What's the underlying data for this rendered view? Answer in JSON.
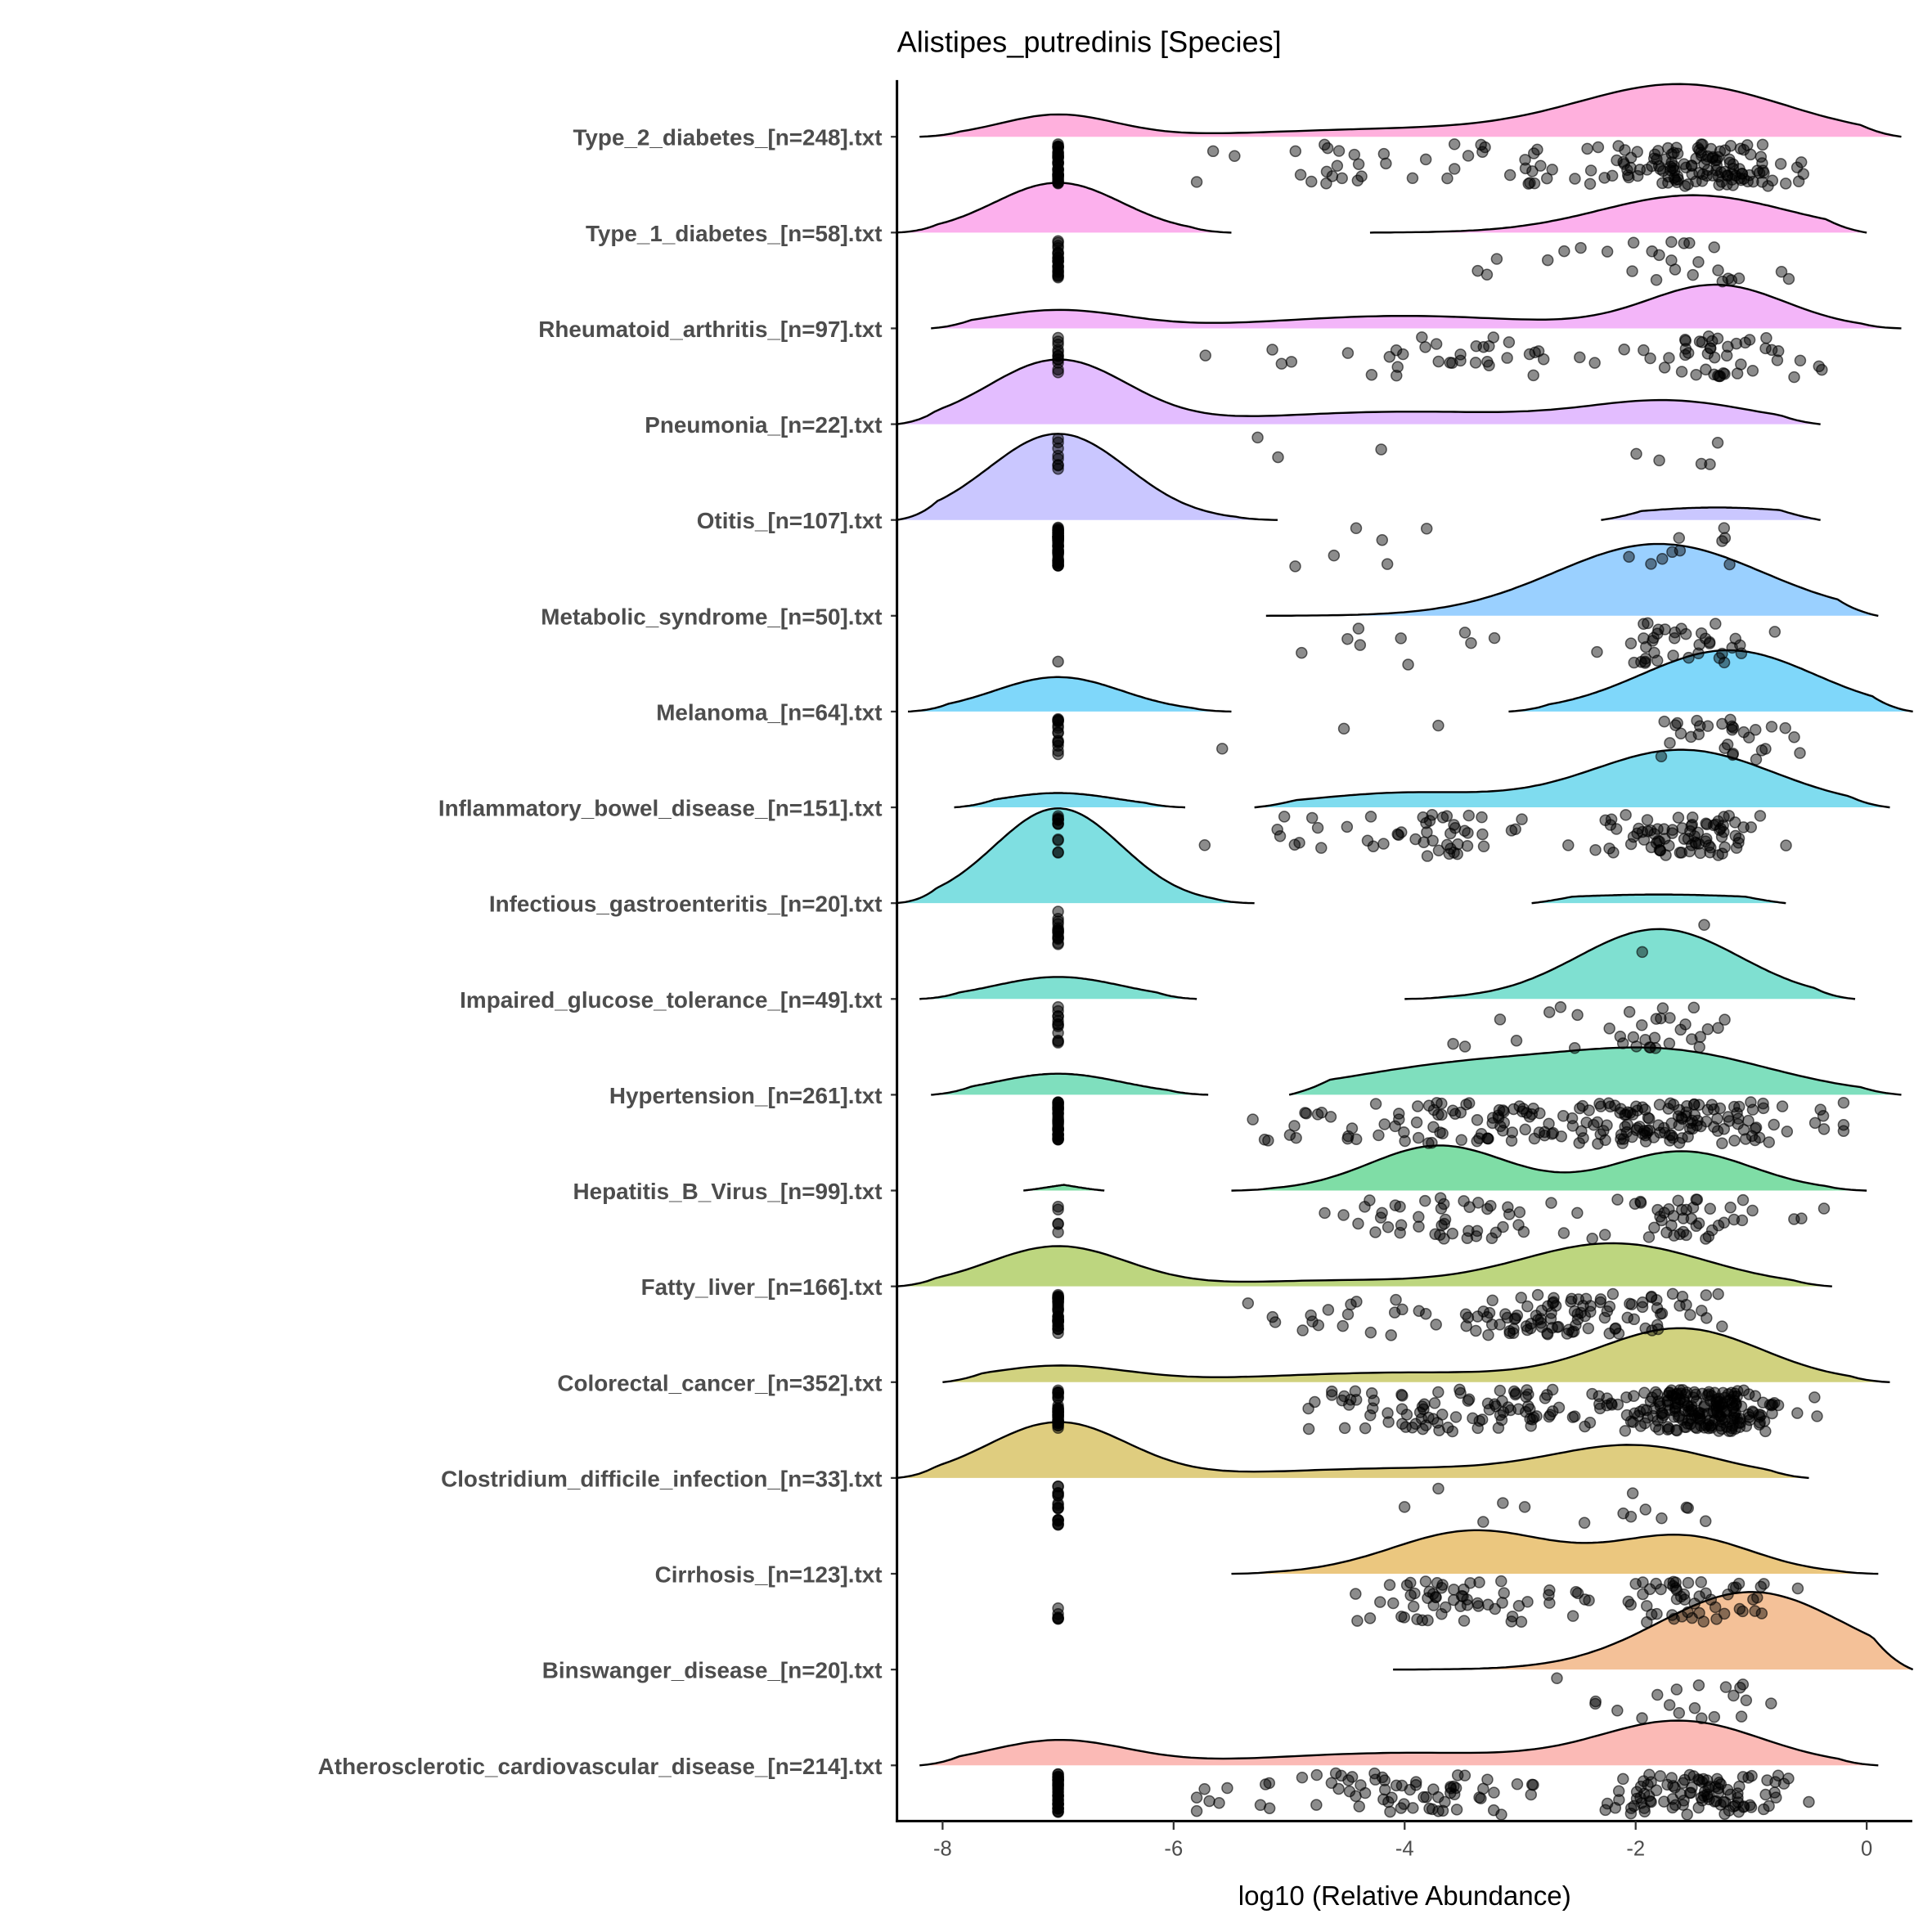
{
  "chart_data": {
    "type": "ridgeline-raincloud",
    "title": "Alistipes_putredinis [Species]",
    "xlabel": "log10 (Relative Abundance)",
    "ylabel": "",
    "xlim": [
      -8.4,
      0.4
    ],
    "xticks": [
      -8,
      -6,
      -4,
      -2,
      0
    ],
    "xtick_labels": [
      "-8",
      "-6",
      "-4",
      "-2",
      "0"
    ],
    "zero_value": -7,
    "grid": false,
    "legend": "none",
    "categories": [
      {
        "label": "Type_2_diabetes_[n=248].txt",
        "color": "#FF62BC",
        "segments": [
          {
            "range": [
              -8.2,
              0.3
            ],
            "components": [
              [
                -7,
                0.5,
                0.23
              ],
              [
                -4,
                1.2,
                0.08
              ],
              [
                -1.6,
                0.9,
                0.54
              ]
            ]
          }
        ],
        "zeros": 40,
        "points": [
          [
            -4.5,
            0.6,
            25
          ],
          [
            -2.6,
            0.6,
            35
          ],
          [
            -1.4,
            0.4,
            110
          ]
        ]
      },
      {
        "label": "Type_1_diabetes_[n=58].txt",
        "color": "#FA62DB",
        "segments": [
          {
            "range": [
              -8.4,
              -5.5
            ],
            "components": [
              [
                -7,
                0.55,
                0.52
              ]
            ]
          },
          {
            "range": [
              -4.3,
              0
            ],
            "components": [
              [
                -1.5,
                0.8,
                0.39
              ]
            ]
          }
        ],
        "zeros": 25,
        "points": [
          [
            -3.3,
            0.4,
            5
          ],
          [
            -1.6,
            0.4,
            22
          ]
        ]
      },
      {
        "label": "Rheumatoid_arthritis_[n=97].txt",
        "color": "#E76BF3",
        "segments": [
          {
            "range": [
              -8.1,
              0.3
            ],
            "components": [
              [
                -7,
                0.6,
                0.19
              ],
              [
                -4,
                1.1,
                0.13
              ],
              [
                -1.3,
                0.6,
                0.45
              ]
            ]
          }
        ],
        "zeros": 12,
        "points": [
          [
            -4.6,
            0.5,
            10
          ],
          [
            -3.3,
            0.5,
            25
          ],
          [
            -1.3,
            0.35,
            45
          ]
        ]
      },
      {
        "label": "Pneumonia_[n=22].txt",
        "color": "#C77CFF",
        "segments": [
          {
            "range": [
              -8.4,
              -0.4
            ],
            "components": [
              [
                -7,
                0.6,
                0.67
              ],
              [
                -4,
                1.2,
                0.13
              ],
              [
                -1.7,
                0.7,
                0.23
              ]
            ]
          }
        ],
        "zeros": 8,
        "points": [
          [
            -4.5,
            0.7,
            3
          ],
          [
            -1.7,
            0.4,
            5
          ]
        ]
      },
      {
        "label": "Otitis_[n=107].txt",
        "color": "#9590FF",
        "segments": [
          {
            "range": [
              -8.4,
              -5.1
            ],
            "components": [
              [
                -7,
                0.6,
                0.9
              ]
            ]
          },
          {
            "range": [
              -2.3,
              -0.4
            ],
            "components": [
              [
                -1.3,
                0.8,
                0.13
              ]
            ]
          }
        ],
        "zeros": 60,
        "points": [
          [
            -4.3,
            0.6,
            6
          ],
          [
            -1.3,
            0.3,
            10
          ]
        ]
      },
      {
        "label": "Metabolic_syndrome_[n=50].txt",
        "color": "#35A2FF",
        "segments": [
          {
            "range": [
              -5.2,
              0.1
            ],
            "components": [
              [
                -1.8,
                0.9,
                0.75
              ]
            ]
          }
        ],
        "zeros": 1,
        "points": [
          [
            -3.8,
            0.6,
            10
          ],
          [
            -1.6,
            0.35,
            38
          ]
        ]
      },
      {
        "label": "Melanoma_[n=64].txt",
        "color": "#00B0F6",
        "segments": [
          {
            "range": [
              -8.3,
              -5.5
            ],
            "components": [
              [
                -7,
                0.55,
                0.36
              ]
            ]
          },
          {
            "range": [
              -3.1,
              0.4
            ],
            "components": [
              [
                -1.2,
                0.75,
                0.64
              ]
            ]
          }
        ],
        "zeros": 15,
        "points": [
          [
            -4.5,
            0.6,
            3
          ],
          [
            -1.2,
            0.3,
            30
          ]
        ]
      },
      {
        "label": "Inflammatory_bowel_disease_[n=151].txt",
        "color": "#00BAE0",
        "segments": [
          {
            "range": [
              -7.9,
              -5.9
            ],
            "components": [
              [
                -7,
                0.5,
                0.15
              ]
            ]
          },
          {
            "range": [
              -5.3,
              0.2
            ],
            "components": [
              [
                -4,
                0.8,
                0.15
              ],
              [
                -1.6,
                0.8,
                0.6
              ]
            ]
          }
        ],
        "zeros": 12,
        "points": [
          [
            -5.0,
            0.3,
            8
          ],
          [
            -3.6,
            0.4,
            40
          ],
          [
            -1.6,
            0.4,
            80
          ]
        ]
      },
      {
        "label": "Infectious_gastroenteritis_[n=20].txt",
        "color": "#00BFC4",
        "segments": [
          {
            "range": [
              -8.4,
              -5.3
            ],
            "components": [
              [
                -7,
                0.55,
                0.99
              ]
            ]
          },
          {
            "range": [
              -2.9,
              -0.7
            ],
            "components": [
              [
                -1.8,
                1.0,
                0.09
              ]
            ]
          }
        ],
        "zeros": 16,
        "points": [
          [
            -1.8,
            0.6,
            2
          ]
        ]
      },
      {
        "label": "Impaired_glucose_tolerance_[n=49].txt",
        "color": "#00C1A3",
        "segments": [
          {
            "range": [
              -8.2,
              -5.8
            ],
            "components": [
              [
                -7,
                0.55,
                0.23
              ]
            ]
          },
          {
            "range": [
              -4,
              -0.1
            ],
            "components": [
              [
                -1.8,
                0.7,
                0.73
              ]
            ]
          }
        ],
        "zeros": 12,
        "points": [
          [
            -3.1,
            0.3,
            6
          ],
          [
            -1.8,
            0.35,
            28
          ]
        ]
      },
      {
        "label": "Hypertension_[n=261].txt",
        "color": "#00BF7D",
        "segments": [
          {
            "range": [
              -8.1,
              -5.7
            ],
            "components": [
              [
                -7,
                0.55,
                0.22
              ]
            ]
          },
          {
            "range": [
              -5.0,
              0.3
            ],
            "components": [
              [
                -3.5,
                1.0,
                0.3
              ],
              [
                -1.7,
                0.9,
                0.42
              ]
            ]
          }
        ],
        "zeros": 40,
        "points": [
          [
            -4.6,
            0.5,
            20
          ],
          [
            -3.2,
            0.5,
            60
          ],
          [
            -1.7,
            0.6,
            130
          ]
        ]
      },
      {
        "label": "Hepatitis_B_Virus_[n=99].txt",
        "color": "#00BB4E",
        "segments": [
          {
            "range": [
              -7.3,
              -6.6
            ],
            "components": [
              [
                -7,
                0.4,
                0.06
              ]
            ]
          },
          {
            "range": [
              -5.5,
              0
            ],
            "components": [
              [
                -3.7,
                0.6,
                0.47
              ],
              [
                -1.6,
                0.6,
                0.41
              ]
            ]
          }
        ],
        "zeros": 5,
        "points": [
          [
            -3.7,
            0.45,
            45
          ],
          [
            -1.6,
            0.4,
            45
          ]
        ]
      },
      {
        "label": "Fatty_liver_[n=166].txt",
        "color": "#7CAE00",
        "segments": [
          {
            "range": [
              -8.4,
              -0.3
            ],
            "components": [
              [
                -7,
                0.6,
                0.42
              ],
              [
                -4.6,
                0.8,
                0.06
              ],
              [
                -2.2,
                0.8,
                0.45
              ]
            ]
          }
        ],
        "zeros": 40,
        "points": [
          [
            -4.5,
            0.5,
            20
          ],
          [
            -2.5,
            0.6,
            100
          ]
        ]
      },
      {
        "label": "Colorectal_cancer_[n=352].txt",
        "color": "#A3A500",
        "segments": [
          {
            "range": [
              -8,
              0.2
            ],
            "components": [
              [
                -7,
                0.6,
                0.17
              ],
              [
                -4,
                1.2,
                0.1
              ],
              [
                -1.6,
                0.7,
                0.55
              ]
            ]
          }
        ],
        "zeros": 40,
        "points": [
          [
            -4.3,
            0.7,
            40
          ],
          [
            -2.8,
            0.5,
            60
          ],
          [
            -1.4,
            0.35,
            200
          ]
        ]
      },
      {
        "label": "Clostridium_difficile_infection_[n=33].txt",
        "color": "#C09B00",
        "segments": [
          {
            "range": [
              -8.4,
              -0.5
            ],
            "components": [
              [
                -7,
                0.6,
                0.58
              ],
              [
                -4,
                1.2,
                0.1
              ],
              [
                -2,
                0.7,
                0.32
              ]
            ]
          }
        ],
        "zeros": 18,
        "points": [
          [
            -3.5,
            0.4,
            5
          ],
          [
            -1.9,
            0.3,
            9
          ]
        ]
      },
      {
        "label": "Cirrhosis_[n=123].txt",
        "color": "#D89000",
        "segments": [
          {
            "range": [
              -5.5,
              0.1
            ],
            "components": [
              [
                -3.4,
                0.7,
                0.45
              ],
              [
                -1.6,
                0.6,
                0.39
              ]
            ]
          }
        ],
        "zeros": 6,
        "points": [
          [
            -3.6,
            0.45,
            55
          ],
          [
            -1.5,
            0.4,
            55
          ]
        ]
      },
      {
        "label": "Binswanger_disease_[n=20].txt",
        "color": "#EA8331",
        "segments": [
          {
            "range": [
              -4.1,
              0.4
            ],
            "components": [
              [
                -1.0,
                0.8,
                0.81
              ]
            ]
          }
        ],
        "zeros": 0,
        "points": [
          [
            -1.5,
            0.6,
            20
          ]
        ]
      },
      {
        "label": "Atherosclerotic_cardiovascular_disease_[n=214].txt",
        "color": "#F8766D",
        "segments": [
          {
            "range": [
              -8.2,
              0.1
            ],
            "components": [
              [
                -7,
                0.6,
                0.26
              ],
              [
                -4,
                1.2,
                0.13
              ],
              [
                -1.6,
                0.7,
                0.45
              ]
            ]
          }
        ],
        "zeros": 40,
        "points": [
          [
            -5.3,
            0.4,
            10
          ],
          [
            -3.8,
            0.5,
            60
          ],
          [
            -1.5,
            0.4,
            100
          ]
        ]
      }
    ]
  }
}
